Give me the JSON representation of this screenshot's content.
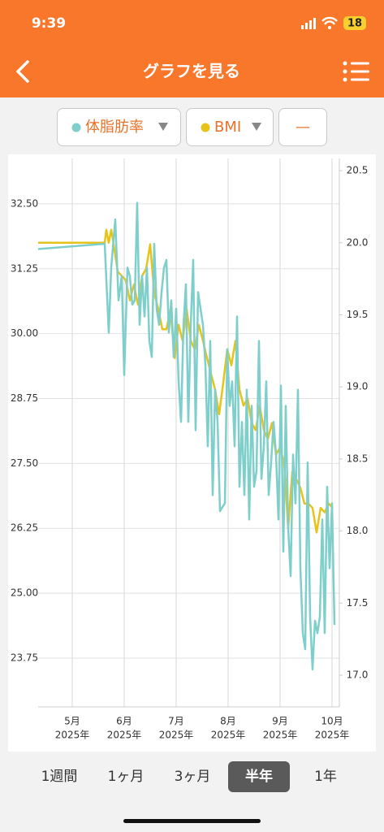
{
  "status_bar": {
    "time": "9:39",
    "battery": "18"
  },
  "header": {
    "title": "グラフを見る"
  },
  "extra_filter": "—",
  "periods": {
    "options": [
      "1週間",
      "1ヶ月",
      "3ヶ月",
      "半年",
      "1年"
    ],
    "selected": 3
  },
  "chart_data": {
    "type": "line",
    "xlim": [
      4.344,
      10.141
    ],
    "xticks": [
      {
        "value": 5,
        "label": "5月"
      },
      {
        "value": 6,
        "label": "6月"
      },
      {
        "value": 7,
        "label": "7月"
      },
      {
        "value": 8,
        "label": "8月"
      },
      {
        "value": 9,
        "label": "9月"
      },
      {
        "value": 10,
        "label": "10月"
      }
    ],
    "xtick_years": [
      "2025年",
      "2025年",
      "2025年",
      "2025年",
      "2025年",
      "2025年"
    ],
    "ylim": [
      22.81,
      33.375
    ],
    "yticks": [
      23.75,
      {
        "value": 25,
        "label": "25.00"
      },
      26.25,
      {
        "value": 27.5,
        "label": "27.50"
      },
      28.75,
      {
        "value": 30,
        "label": "30.00"
      },
      31.25,
      {
        "value": 32.5,
        "label": "32.50"
      }
    ],
    "y2lim": [
      16.78,
      20.585
    ],
    "y2ticks": [
      {
        "value": 17,
        "label": "17.0"
      },
      17.5,
      {
        "value": 18,
        "label": "18.0"
      },
      18.5,
      {
        "value": 19,
        "label": "19.0"
      },
      19.5,
      {
        "value": 20,
        "label": "20.0"
      },
      20.5
    ],
    "grid": true,
    "series": [
      {
        "name": "BMI",
        "color": "#e6c31a",
        "axis": "y2",
        "x": [
          4.344,
          5.625,
          5.656,
          5.703,
          5.75,
          5.797,
          5.875,
          5.953,
          6.031,
          6.109,
          6.188,
          6.266,
          6.344,
          6.422,
          6.5,
          6.578,
          6.656,
          6.734,
          6.813,
          6.891,
          6.969,
          7.047,
          7.125,
          7.203,
          7.281,
          7.359,
          7.438,
          7.516,
          7.594,
          7.672,
          7.75,
          7.828,
          7.906,
          7.984,
          8.063,
          8.141,
          8.219,
          8.297,
          8.375,
          8.453,
          8.531,
          8.609,
          8.688,
          8.766,
          8.844,
          8.922,
          9.0,
          9.078,
          9.156,
          9.234,
          9.313,
          9.391,
          9.469,
          9.547,
          9.625,
          9.703,
          9.781,
          9.859,
          9.938,
          10.016
        ],
        "values": [
          20.0,
          20.0,
          20.09,
          20.0,
          20.09,
          19.99,
          19.8,
          19.77,
          19.74,
          19.6,
          19.71,
          19.57,
          19.77,
          19.82,
          19.99,
          19.65,
          19.54,
          19.4,
          19.4,
          19.54,
          19.2,
          19.43,
          19.32,
          19.54,
          19.32,
          19.26,
          19.43,
          19.32,
          19.2,
          19.09,
          18.98,
          18.81,
          19.03,
          19.26,
          19.15,
          19.32,
          18.98,
          18.87,
          18.92,
          18.75,
          18.7,
          18.87,
          18.7,
          18.64,
          18.75,
          18.53,
          18.58,
          18.47,
          18.02,
          18.41,
          18.36,
          18.3,
          18.19,
          18.19,
          18.16,
          17.99,
          18.16,
          18.13,
          18.19,
          18.16
        ]
      },
      {
        "name": "体脂肪率",
        "color": "#7ecfcb",
        "x": [
          4.344,
          5.625,
          5.703,
          5.75,
          5.828,
          5.891,
          5.953,
          6.0,
          6.063,
          6.109,
          6.156,
          6.203,
          6.25,
          6.297,
          6.344,
          6.391,
          6.438,
          6.484,
          6.531,
          6.578,
          6.625,
          6.672,
          6.719,
          6.766,
          6.813,
          6.859,
          6.906,
          6.953,
          7.0,
          7.047,
          7.094,
          7.141,
          7.188,
          7.234,
          7.281,
          7.328,
          7.375,
          7.422,
          7.469,
          7.516,
          7.563,
          7.609,
          7.656,
          7.703,
          7.75,
          7.797,
          7.844,
          7.891,
          7.938,
          7.984,
          8.031,
          8.078,
          8.125,
          8.172,
          8.219,
          8.266,
          8.313,
          8.359,
          8.406,
          8.453,
          8.5,
          8.547,
          8.594,
          8.641,
          8.688,
          8.734,
          8.781,
          8.828,
          8.875,
          8.922,
          8.969,
          9.016,
          9.063,
          9.109,
          9.156,
          9.203,
          9.25,
          9.297,
          9.344,
          9.391,
          9.438,
          9.484,
          9.531,
          9.578,
          9.625,
          9.672,
          9.719,
          9.766,
          9.813,
          9.859,
          9.906,
          9.953,
          10.0,
          10.047
        ],
        "values": [
          31.63,
          31.73,
          30.02,
          31.27,
          32.2,
          30.64,
          31.11,
          29.2,
          31.27,
          31.11,
          30.56,
          30.64,
          32.52,
          30.17,
          31.11,
          30.33,
          31.27,
          29.86,
          29.55,
          31.73,
          30.48,
          30.17,
          30.8,
          31.27,
          31.42,
          30.02,
          30.64,
          29.55,
          30.48,
          29.08,
          28.3,
          30.17,
          30.95,
          28.3,
          30.17,
          31.42,
          28.14,
          30.8,
          30.48,
          30.17,
          29.39,
          27.83,
          29.86,
          26.89,
          28.92,
          28.3,
          26.58,
          26.66,
          26.73,
          29.7,
          28.61,
          29.08,
          27.83,
          30.33,
          27.05,
          28.3,
          26.89,
          28.92,
          26.42,
          28.61,
          27.05,
          27.36,
          29.86,
          27.2,
          27.83,
          29.08,
          26.89,
          27.52,
          28.3,
          27.67,
          26.42,
          29.0,
          25.8,
          28.61,
          26.27,
          25.33,
          27.67,
          26.73,
          28.92,
          25.48,
          24.23,
          23.92,
          27.52,
          24.55,
          23.53,
          24.47,
          24.23,
          24.55,
          26.42,
          24.23,
          27.05,
          25.48,
          26.73,
          24.39
        ]
      }
    ]
  }
}
